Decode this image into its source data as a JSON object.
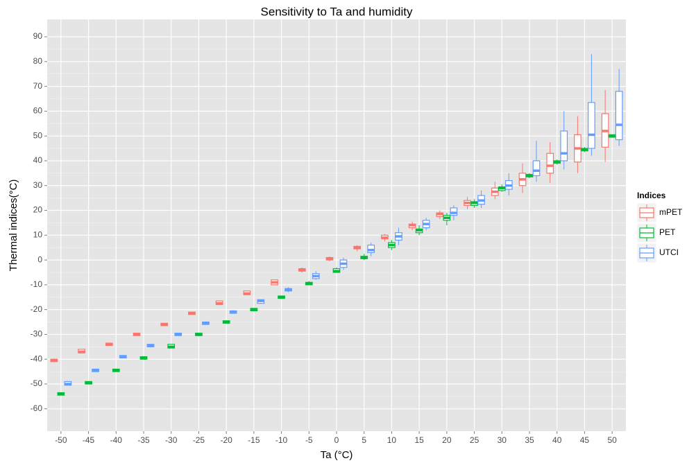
{
  "chart_data": {
    "type": "boxplot",
    "title": "Sensitivity to Ta and humidity",
    "x_label": "Ta (°C)",
    "y_label": "Thermal indices(°C)",
    "legend_title": "Indices",
    "legend_position": "right",
    "grid": true,
    "categories": [
      "-50",
      "-45",
      "-40",
      "-35",
      "-30",
      "-25",
      "-20",
      "-15",
      "-10",
      "-5",
      "0",
      "5",
      "10",
      "15",
      "20",
      "25",
      "30",
      "35",
      "40",
      "45",
      "50"
    ],
    "ylim": [
      -69,
      97
    ],
    "yticks": [
      -60,
      -50,
      -40,
      -30,
      -20,
      -10,
      0,
      10,
      20,
      30,
      40,
      50,
      60,
      70,
      80,
      90
    ],
    "series": [
      {
        "name": "mPET",
        "color": "#F8766D",
        "min": [
          -41,
          -37.5,
          -34.5,
          -30.5,
          -26.5,
          -22,
          -18,
          -14,
          -10,
          -5,
          -0.5,
          3.5,
          7.5,
          12,
          16.5,
          20.5,
          24.5,
          27,
          31,
          35,
          39.5
        ],
        "q1": [
          -41,
          -37.5,
          -34.5,
          -30.5,
          -26.5,
          -22,
          -18,
          -14,
          -10,
          -4.5,
          0,
          4.5,
          8.5,
          13,
          17.5,
          22,
          26,
          30,
          35,
          39.5,
          45.5
        ],
        "median": [
          -40.5,
          -37,
          -34,
          -30,
          -26,
          -21.5,
          -17.5,
          -13.5,
          -9,
          -4,
          0.5,
          5,
          9,
          14,
          18.5,
          23,
          27.5,
          32.5,
          38,
          45,
          52
        ],
        "q3": [
          -40,
          -36,
          -33.5,
          -29.5,
          -25.5,
          -21,
          -16.5,
          -12.5,
          -8,
          -3.5,
          1,
          5.5,
          10,
          14.5,
          19,
          24,
          29,
          35,
          43,
          50.5,
          59
        ],
        "max": [
          -40,
          -36,
          -33.5,
          -29.5,
          -25.5,
          -21,
          -16.5,
          -12.5,
          -8,
          -3,
          1.5,
          6,
          10.5,
          15.5,
          20,
          25.5,
          31.5,
          39,
          47.5,
          58,
          68.5
        ]
      },
      {
        "name": "PET",
        "color": "#00BA38",
        "min": [
          -54.5,
          -50,
          -45,
          -40,
          -35.5,
          -30.5,
          -25.5,
          -20.5,
          -15.5,
          -10,
          -5,
          0,
          4,
          10,
          14,
          21,
          27.5,
          33,
          38.5,
          43.5,
          49.5
        ],
        "q1": [
          -54.5,
          -50,
          -45,
          -40,
          -35.5,
          -30.5,
          -25.5,
          -20.5,
          -15.5,
          -10,
          -5,
          0.5,
          5,
          11,
          16,
          22,
          28,
          33.5,
          39,
          44,
          49.5
        ],
        "median": [
          -54,
          -49.5,
          -44.5,
          -39.5,
          -35,
          -30,
          -25,
          -20,
          -15,
          -9.5,
          -4.5,
          1,
          6,
          12,
          17,
          23,
          29,
          34,
          39.5,
          44.5,
          50
        ],
        "q3": [
          -53.5,
          -49,
          -44,
          -39,
          -34,
          -29.5,
          -24.5,
          -19.5,
          -14.5,
          -9,
          -3.5,
          1.5,
          7,
          12.5,
          18,
          23.5,
          29.5,
          34.5,
          40,
          45,
          50.5
        ],
        "max": [
          -53.5,
          -49,
          -44,
          -39,
          -34,
          -29.5,
          -24.5,
          -19.5,
          -14.5,
          -8.5,
          -3,
          2.5,
          8,
          14,
          19,
          24.5,
          30.5,
          35,
          40.5,
          45.5,
          50.5
        ]
      },
      {
        "name": "UTCI",
        "color": "#619CFF",
        "min": [
          -50.5,
          -45,
          -39.5,
          -35,
          -30.5,
          -26,
          -21.5,
          -17.5,
          -13,
          -8,
          -4,
          1.5,
          6,
          12,
          16,
          21,
          26,
          31.5,
          36.5,
          42,
          46
        ],
        "q1": [
          -50.5,
          -45,
          -39.5,
          -35,
          -30.5,
          -26,
          -21.5,
          -17.5,
          -12.5,
          -7.5,
          -3,
          3,
          8,
          13,
          18,
          22.5,
          28.5,
          34,
          40,
          45,
          48.5
        ],
        "median": [
          -50,
          -44.5,
          -39,
          -34.5,
          -30,
          -25.5,
          -21,
          -16.5,
          -12,
          -6.5,
          -1.5,
          4,
          9.5,
          14.5,
          19,
          24,
          30,
          36,
          43,
          50.5,
          54.5
        ],
        "q3": [
          -49,
          -44,
          -38.5,
          -34,
          -29.5,
          -25,
          -20.5,
          -16,
          -11.5,
          -5.5,
          0,
          6,
          11,
          16,
          21,
          26,
          32,
          40,
          52,
          63.5,
          68
        ],
        "max": [
          -49,
          -44,
          -38.5,
          -34,
          -29.5,
          -25,
          -20.5,
          -16,
          -11,
          -4.5,
          1,
          7,
          13,
          17,
          22,
          28,
          35,
          48,
          60,
          83,
          77
        ]
      }
    ]
  }
}
